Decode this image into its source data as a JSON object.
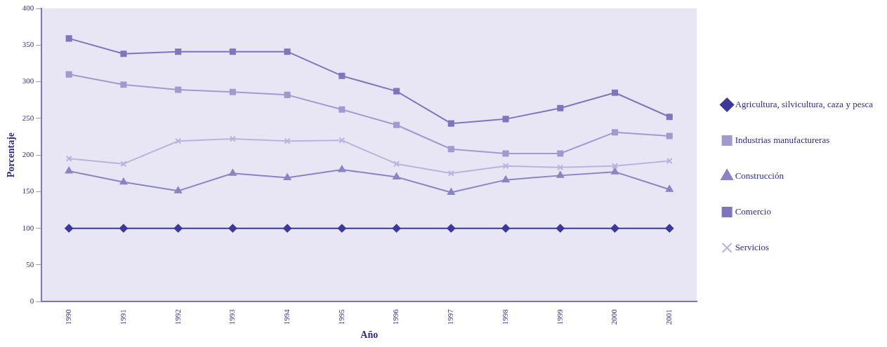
{
  "chart_data": {
    "type": "line",
    "xlabel": "Año",
    "ylabel": "Porcentaje",
    "categories": [
      "1990",
      "1991",
      "1992",
      "1993",
      "1994",
      "1995",
      "1996",
      "1997",
      "1998",
      "1999",
      "2000",
      "2001"
    ],
    "ylim": [
      0,
      400
    ],
    "yticks": [
      0,
      50,
      100,
      150,
      200,
      250,
      300,
      350,
      400
    ],
    "grid": false,
    "legend": "right",
    "line_style": "solid",
    "series": [
      {
        "name": "Agricultura, silvicultura, caza y pesca",
        "color": "#3b3a9a",
        "marker": "diamond",
        "values": [
          100,
          100,
          100,
          100,
          100,
          100,
          100,
          100,
          100,
          100,
          100,
          100
        ]
      },
      {
        "name": "Industrias manufactureras",
        "color": "#a09ad0",
        "marker": "square",
        "values": [
          310,
          296,
          289,
          286,
          282,
          262,
          241,
          208,
          202,
          202,
          231,
          226
        ]
      },
      {
        "name": "Construcción",
        "color": "#8a84c4",
        "marker": "triangle",
        "values": [
          178,
          163,
          151,
          175,
          169,
          180,
          170,
          149,
          166,
          172,
          177,
          153
        ]
      },
      {
        "name": "Comercio",
        "color": "#7d76be",
        "marker": "square",
        "values": [
          359,
          338,
          341,
          341,
          341,
          308,
          287,
          243,
          249,
          264,
          285,
          252
        ]
      },
      {
        "name": "Servicios",
        "color": "#b8b4de",
        "marker": "cross",
        "values": [
          195,
          188,
          219,
          222,
          219,
          220,
          188,
          175,
          185,
          183,
          185,
          192
        ]
      }
    ]
  }
}
